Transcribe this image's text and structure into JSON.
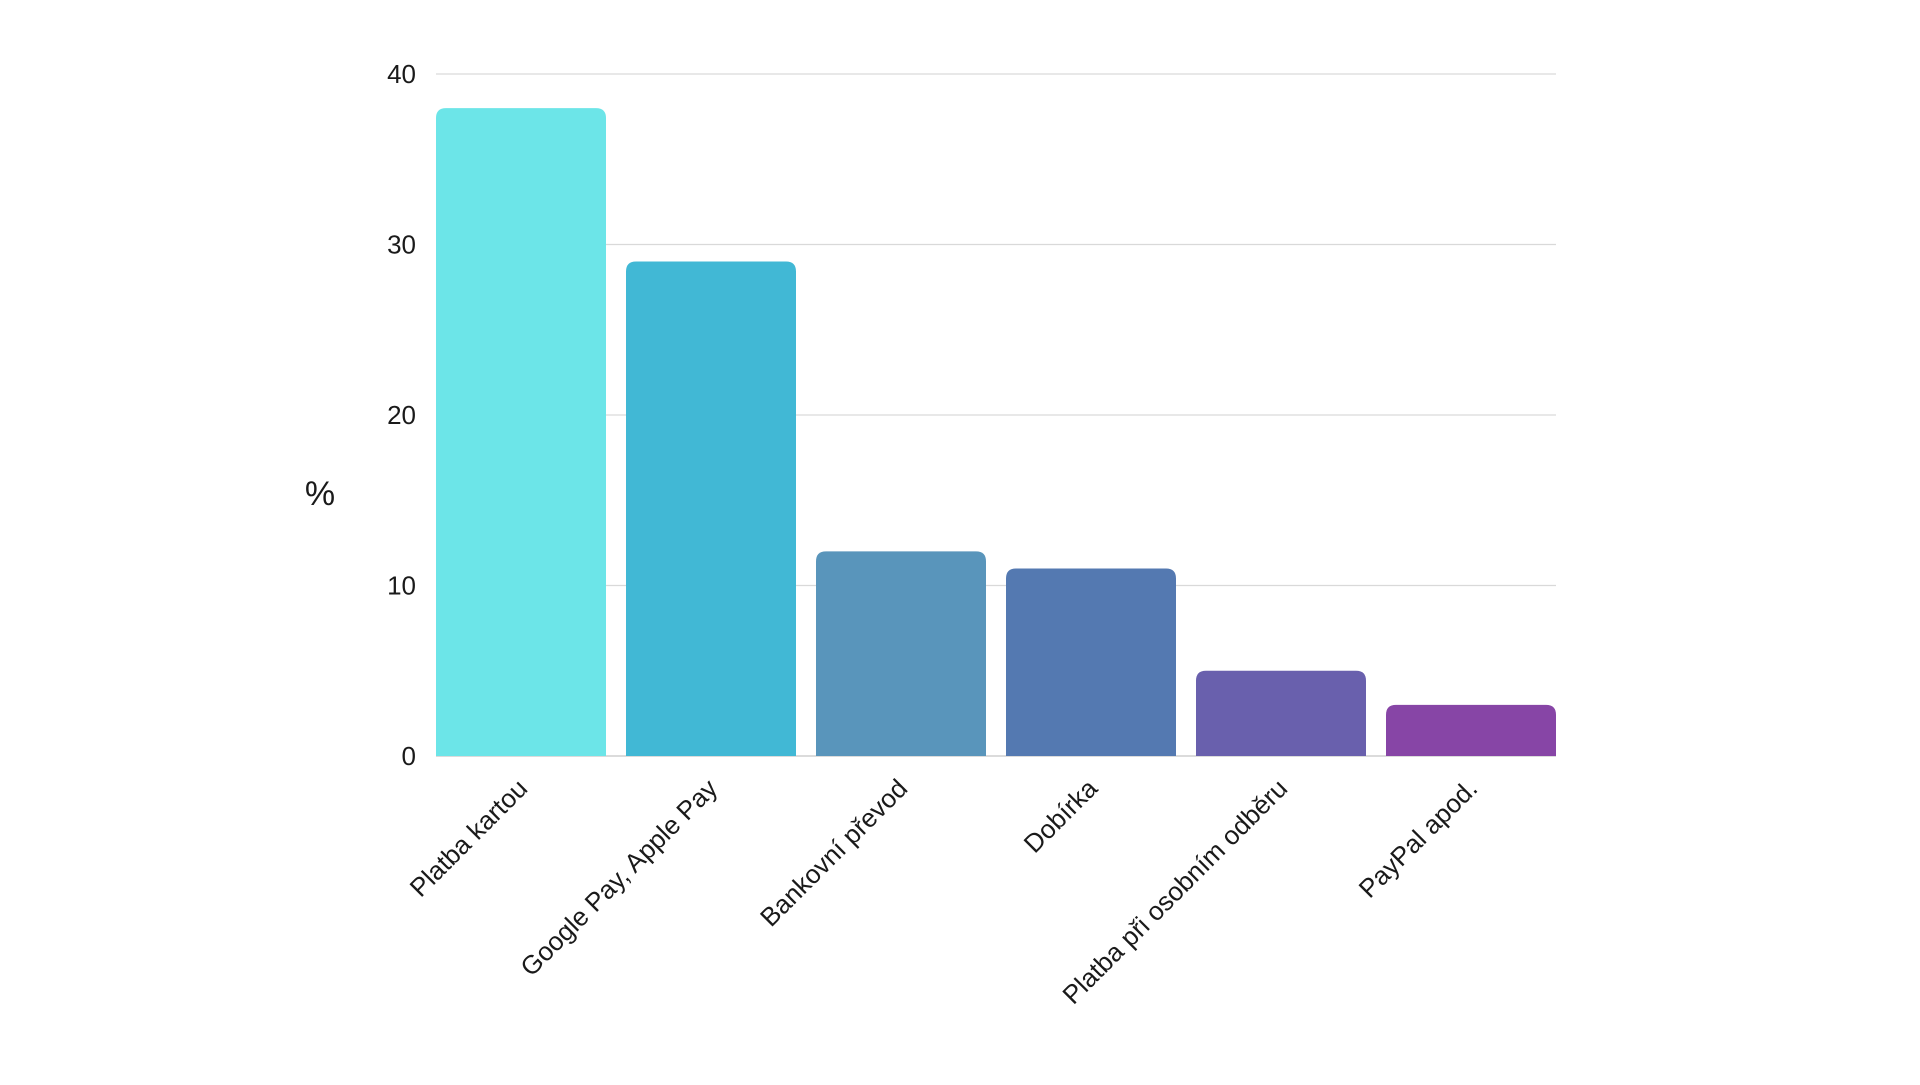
{
  "chart_data": {
    "type": "bar",
    "title": "",
    "xlabel": "",
    "ylabel": "%",
    "ylim": [
      0,
      40
    ],
    "yticks": [
      0,
      10,
      20,
      30,
      40
    ],
    "grid": true,
    "legend": "none",
    "categories": [
      "Platba kartou",
      "Google Pay, Apple Pay",
      "Bankovní převod",
      "Dobírka",
      "Platba při osobním odběru",
      "PayPal apod."
    ],
    "values": [
      38,
      29,
      12,
      11,
      5,
      3
    ],
    "colors": [
      "#6ce5e8",
      "#41b8d5",
      "#5995bb",
      "#5479b1",
      "#6960ad",
      "#8745a6"
    ]
  }
}
